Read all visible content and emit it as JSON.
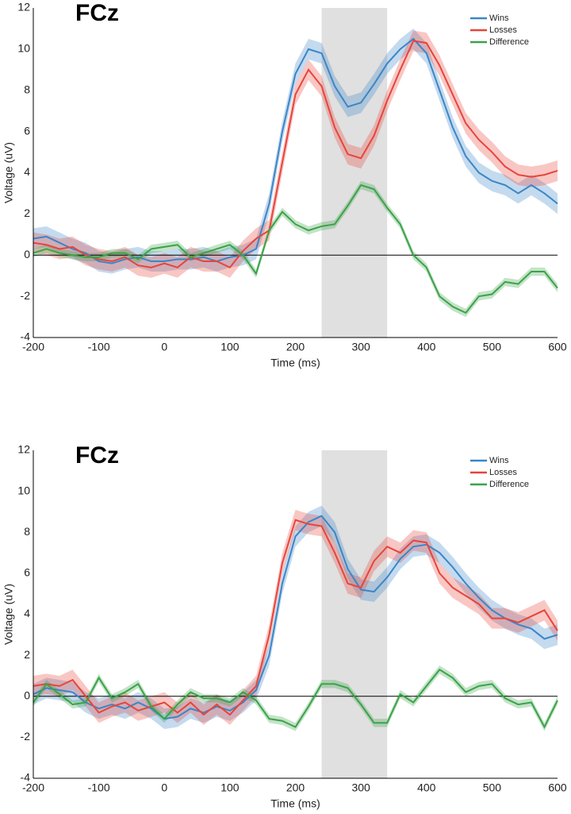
{
  "chart_data": [
    {
      "type": "line",
      "title": "FCz",
      "xlabel": "Time (ms)",
      "ylabel": "Voltage (uV)",
      "x": [
        -200,
        -180,
        -160,
        -140,
        -120,
        -100,
        -80,
        -60,
        -40,
        -20,
        0,
        20,
        40,
        60,
        80,
        100,
        120,
        140,
        160,
        180,
        200,
        220,
        240,
        260,
        280,
        300,
        320,
        340,
        360,
        380,
        400,
        420,
        440,
        460,
        480,
        500,
        520,
        540,
        560,
        580,
        600
      ],
      "series": [
        {
          "name": "Wins",
          "color": "#3a86c8",
          "error": 0.5,
          "values": [
            0.8,
            0.9,
            0.6,
            0.3,
            0.1,
            -0.3,
            -0.4,
            -0.2,
            -0.1,
            -0.3,
            -0.3,
            -0.2,
            -0.2,
            -0.1,
            -0.3,
            -0.1,
            0.0,
            0.3,
            2.5,
            6.0,
            8.8,
            10.0,
            9.8,
            8.2,
            7.2,
            7.4,
            8.3,
            9.3,
            10.0,
            10.5,
            9.8,
            8.0,
            6.2,
            4.8,
            4.0,
            3.6,
            3.4,
            3.0,
            3.4,
            3.0,
            2.5
          ]
        },
        {
          "name": "Losses",
          "color": "#e8443a",
          "error": 0.5,
          "values": [
            0.6,
            0.5,
            0.3,
            0.4,
            0.0,
            -0.2,
            -0.3,
            -0.1,
            -0.5,
            -0.6,
            -0.4,
            -0.6,
            -0.1,
            -0.3,
            -0.3,
            -0.6,
            0.2,
            0.8,
            1.2,
            4.5,
            7.8,
            9.0,
            8.2,
            6.2,
            4.9,
            4.7,
            5.8,
            7.5,
            9.0,
            10.4,
            10.3,
            9.2,
            7.8,
            6.4,
            5.6,
            5.0,
            4.3,
            3.9,
            3.8,
            3.9,
            4.1
          ]
        },
        {
          "name": "Difference",
          "color": "#3aa348",
          "error": 0.2,
          "values": [
            0.1,
            0.3,
            0.1,
            0.0,
            -0.1,
            -0.1,
            0.1,
            0.1,
            -0.2,
            0.3,
            0.4,
            0.5,
            -0.1,
            0.1,
            0.3,
            0.5,
            0.0,
            -0.9,
            1.2,
            2.1,
            1.5,
            1.2,
            1.4,
            1.5,
            2.4,
            3.4,
            3.2,
            2.3,
            1.5,
            0.0,
            -0.6,
            -2.0,
            -2.5,
            -2.8,
            -2.0,
            -1.9,
            -1.3,
            -1.4,
            -0.8,
            -0.8,
            -1.6
          ]
        }
      ],
      "highlight": [
        240,
        340
      ],
      "hline": 0,
      "xlim": [
        -200,
        600
      ],
      "xticks": [
        -200,
        -100,
        0,
        100,
        200,
        300,
        400,
        500,
        600
      ],
      "ylim": [
        -4,
        12
      ],
      "yticks": [
        -4,
        -2,
        0,
        2,
        4,
        6,
        8,
        10,
        12
      ],
      "grid": false,
      "legend": "upper right"
    },
    {
      "type": "line",
      "title": "FCz",
      "xlabel": "Time (ms)",
      "ylabel": "Voltage (uV)",
      "x": [
        -200,
        -180,
        -160,
        -140,
        -120,
        -100,
        -80,
        -60,
        -40,
        -20,
        0,
        20,
        40,
        60,
        80,
        100,
        120,
        140,
        160,
        180,
        200,
        220,
        240,
        260,
        280,
        300,
        320,
        340,
        360,
        380,
        400,
        420,
        440,
        460,
        480,
        500,
        520,
        540,
        560,
        580,
        600
      ],
      "series": [
        {
          "name": "Wins",
          "color": "#3a86c8",
          "error": 0.5,
          "values": [
            0.1,
            0.4,
            0.3,
            0.2,
            -0.3,
            -0.6,
            -0.4,
            -0.6,
            -0.3,
            -0.6,
            -1.1,
            -1.0,
            -0.6,
            -0.8,
            -0.5,
            -0.7,
            -0.3,
            0.3,
            2.0,
            5.5,
            7.8,
            8.5,
            8.8,
            8.0,
            6.2,
            5.2,
            5.1,
            5.8,
            6.7,
            7.3,
            7.4,
            7.0,
            6.3,
            5.5,
            4.8,
            4.2,
            3.8,
            3.5,
            3.3,
            2.8,
            3.0
          ]
        },
        {
          "name": "Losses",
          "color": "#e8443a",
          "error": 0.5,
          "values": [
            0.5,
            0.6,
            0.5,
            0.8,
            0.0,
            -0.8,
            -0.5,
            -0.3,
            -0.7,
            -0.5,
            -0.3,
            -0.8,
            -0.3,
            -0.9,
            -0.4,
            -0.9,
            -0.2,
            0.5,
            3.0,
            6.5,
            8.6,
            8.4,
            8.3,
            7.0,
            5.5,
            5.3,
            6.6,
            7.3,
            7.0,
            7.6,
            7.5,
            6.0,
            5.3,
            4.9,
            4.5,
            3.8,
            3.8,
            3.6,
            3.9,
            4.2,
            3.2
          ]
        },
        {
          "name": "Difference",
          "color": "#3aa348",
          "error": 0.2,
          "values": [
            -0.3,
            0.6,
            0.1,
            -0.4,
            -0.3,
            0.9,
            -0.1,
            0.2,
            0.6,
            -0.5,
            -1.1,
            -0.4,
            0.2,
            -0.1,
            -0.1,
            -0.3,
            0.2,
            -0.2,
            -1.1,
            -1.2,
            -1.5,
            -0.5,
            0.6,
            0.6,
            0.4,
            -0.4,
            -1.3,
            -1.3,
            0.1,
            -0.3,
            0.5,
            1.3,
            0.9,
            0.2,
            0.5,
            0.6,
            -0.1,
            -0.4,
            -0.3,
            -1.5,
            -0.2
          ]
        }
      ],
      "highlight": [
        240,
        340
      ],
      "hline": 0,
      "xlim": [
        -200,
        600
      ],
      "xticks": [
        -200,
        -100,
        0,
        100,
        200,
        300,
        400,
        500,
        600
      ],
      "ylim": [
        -4,
        12
      ],
      "yticks": [
        -4,
        -2,
        0,
        2,
        4,
        6,
        8,
        10,
        12
      ],
      "grid": false,
      "legend": "upper right"
    }
  ]
}
